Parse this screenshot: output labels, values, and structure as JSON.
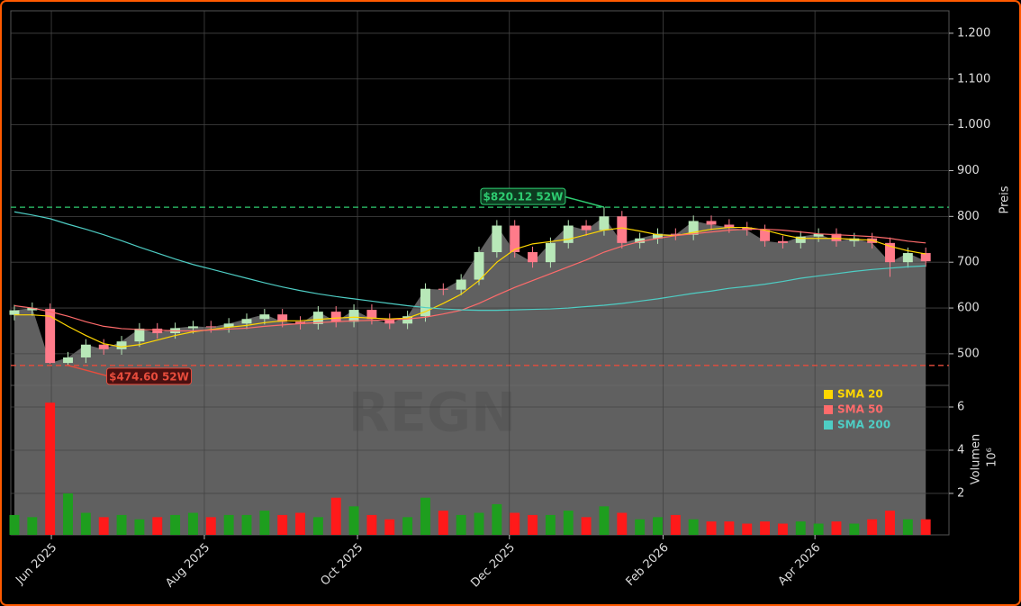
{
  "chart_data": [
    {
      "type": "candlestick",
      "ylabel": "Preis",
      "watermark": "REGN",
      "x": [
        0,
        1,
        2,
        3,
        4,
        5,
        6,
        7,
        8,
        9,
        10,
        11,
        12,
        13,
        14,
        15,
        16,
        17,
        18,
        19,
        20,
        21,
        22,
        23,
        24,
        25,
        26,
        27,
        28,
        29,
        30,
        31,
        32,
        33,
        34,
        35,
        36,
        37,
        38,
        39,
        40,
        41,
        42,
        43,
        44,
        45,
        46,
        47,
        48,
        49,
        50,
        51
      ],
      "xlim": [
        -0.2,
        52.3
      ],
      "xticks": [
        {
          "value": 2.07,
          "label": "Jun 2025"
        },
        {
          "value": 10.63,
          "label": "Aug 2025"
        },
        {
          "value": 19.2,
          "label": "Oct 2025"
        },
        {
          "value": 27.7,
          "label": "Dec 2025"
        },
        {
          "value": 36.3,
          "label": "Feb 2026"
        },
        {
          "value": 44.8,
          "label": "Apr 2026"
        }
      ],
      "open": [
        585,
        595,
        598,
        480,
        492,
        520,
        510,
        527,
        555,
        545,
        556,
        560,
        558,
        566,
        576,
        586,
        570,
        565,
        592,
        570,
        596,
        576,
        566,
        582,
        642,
        640,
        662,
        722,
        780,
        722,
        700,
        742,
        780,
        770,
        800,
        742,
        752,
        762,
        760,
        790,
        782,
        776,
        770,
        746,
        742,
        756,
        762,
        746,
        752,
        742,
        700,
        720
      ],
      "high": [
        607,
        612,
        610,
        504,
        532,
        532,
        539,
        567,
        567,
        568,
        572,
        572,
        578,
        588,
        598,
        598,
        582,
        604,
        604,
        608,
        608,
        588,
        594,
        654,
        654,
        674,
        734,
        792,
        792,
        734,
        754,
        792,
        792,
        820.12,
        812,
        764,
        774,
        774,
        802,
        802,
        794,
        788,
        782,
        758,
        768,
        774,
        774,
        764,
        764,
        754,
        732,
        732
      ],
      "low": [
        573,
        583,
        478,
        474.6,
        480,
        498,
        498,
        515,
        533,
        533,
        544,
        546,
        546,
        554,
        564,
        558,
        553,
        553,
        558,
        558,
        564,
        554,
        554,
        570,
        628,
        628,
        650,
        710,
        710,
        688,
        688,
        730,
        758,
        758,
        730,
        730,
        740,
        748,
        748,
        770,
        764,
        758,
        734,
        730,
        730,
        744,
        734,
        734,
        730,
        668,
        688,
        690
      ],
      "close": [
        595,
        600,
        480,
        492,
        520,
        510,
        527,
        555,
        545,
        556,
        560,
        558,
        566,
        576,
        586,
        570,
        565,
        592,
        570,
        596,
        576,
        566,
        582,
        642,
        640,
        662,
        722,
        780,
        722,
        700,
        742,
        780,
        770,
        800,
        742,
        752,
        762,
        760,
        790,
        782,
        776,
        770,
        746,
        742,
        756,
        762,
        746,
        752,
        742,
        700,
        720,
        702
      ],
      "up_color": "#b8e8b8",
      "down_color": "#ff7b8a",
      "area_color": "#6a6a6a",
      "series": [
        {
          "name": "SMA 20",
          "color": "#ffd700",
          "values": [
            585,
            585,
            582,
            560,
            540,
            522,
            515,
            520,
            530,
            540,
            548,
            553,
            558,
            562,
            568,
            572,
            572,
            575,
            578,
            580,
            578,
            576,
            578,
            592,
            610,
            630,
            660,
            700,
            728,
            740,
            745,
            750,
            760,
            770,
            775,
            768,
            760,
            758,
            765,
            772,
            776,
            776,
            770,
            760,
            752,
            752,
            752,
            750,
            748,
            735,
            725,
            718
          ]
        },
        {
          "name": "SMA 50",
          "color": "#ff6b6b",
          "values": [
            605,
            600,
            592,
            582,
            570,
            560,
            555,
            553,
            552,
            550,
            550,
            552,
            554,
            556,
            560,
            563,
            566,
            568,
            570,
            572,
            573,
            574,
            576,
            580,
            587,
            595,
            610,
            628,
            645,
            660,
            675,
            690,
            705,
            722,
            735,
            745,
            752,
            758,
            762,
            766,
            770,
            772,
            772,
            770,
            766,
            762,
            760,
            758,
            756,
            752,
            746,
            742
          ]
        },
        {
          "name": "SMA 200",
          "color": "#4ecdc4",
          "values": [
            810,
            803,
            795,
            783,
            772,
            760,
            747,
            733,
            720,
            707,
            695,
            685,
            675,
            665,
            655,
            646,
            638,
            631,
            625,
            620,
            615,
            610,
            605,
            601,
            598,
            596,
            595,
            595,
            596,
            597,
            598,
            600,
            603,
            606,
            610,
            615,
            620,
            626,
            632,
            637,
            643,
            647,
            652,
            658,
            665,
            670,
            675,
            680,
            684,
            687,
            690,
            692
          ]
        }
      ],
      "ylim": [
        431,
        1249
      ],
      "yticks": [
        500,
        600,
        700,
        800,
        900,
        {
          "value": 1000,
          "label": "1.000"
        },
        {
          "value": 1100,
          "label": "1.100"
        },
        {
          "value": 1200,
          "label": "1.200"
        }
      ],
      "hlines": [
        {
          "value": 820.12,
          "color": "#2ecc71"
        },
        {
          "value": 474.6,
          "color": "#e74c3c"
        }
      ],
      "annotations": [
        {
          "text": "$820.12 52W",
          "x": 33,
          "value": 820.12,
          "color": "#2ecc71"
        },
        {
          "text": "$474.60 52W",
          "x": 3,
          "value": 474.6,
          "color": "#e74c3c"
        }
      ],
      "grid": true,
      "legend": "upper right"
    },
    {
      "type": "bar",
      "ylabel": "Volumen",
      "multiplier": "10⁶",
      "x": [
        0,
        1,
        2,
        3,
        4,
        5,
        6,
        7,
        8,
        9,
        10,
        11,
        12,
        13,
        14,
        15,
        16,
        17,
        18,
        19,
        20,
        21,
        22,
        23,
        24,
        25,
        26,
        27,
        28,
        29,
        30,
        31,
        32,
        33,
        34,
        35,
        36,
        37,
        38,
        39,
        40,
        41,
        42,
        43,
        44,
        45,
        46,
        47,
        48,
        49,
        50,
        51
      ],
      "values": [
        1.0,
        0.9,
        6.2,
        2.0,
        1.1,
        0.9,
        1.0,
        0.8,
        0.9,
        1.0,
        1.1,
        0.9,
        1.0,
        1.0,
        1.2,
        1.0,
        1.1,
        0.9,
        1.8,
        1.4,
        1.0,
        0.8,
        0.9,
        1.8,
        1.2,
        1.0,
        1.1,
        1.5,
        1.1,
        1.0,
        1.0,
        1.2,
        0.9,
        1.4,
        1.1,
        0.8,
        0.9,
        1.0,
        0.8,
        0.7,
        0.7,
        0.6,
        0.7,
        0.6,
        0.7,
        0.6,
        0.7,
        0.6,
        0.8,
        1.2,
        0.8,
        0.8
      ],
      "up_color": "#1e9e1e",
      "down_color": "#ff1a1a",
      "ylim": [
        0.08,
        7
      ],
      "yticks": [
        2,
        4,
        6
      ],
      "grid": true
    }
  ]
}
